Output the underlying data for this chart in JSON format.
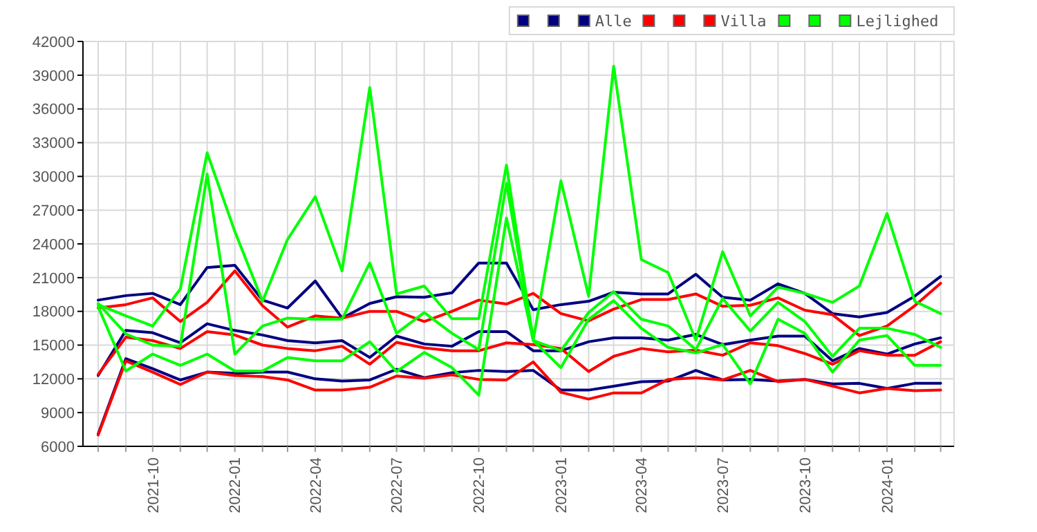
{
  "chart_data": {
    "type": "line",
    "x": [
      "2021-08",
      "2021-09",
      "2021-10",
      "2021-11",
      "2021-12",
      "2022-01",
      "2022-02",
      "2022-03",
      "2022-04",
      "2022-05",
      "2022-06",
      "2022-07",
      "2022-08",
      "2022-09",
      "2022-10",
      "2022-11",
      "2022-12",
      "2023-01",
      "2023-02",
      "2023-03",
      "2023-04",
      "2023-05",
      "2023-06",
      "2023-07",
      "2023-08",
      "2023-09",
      "2023-10",
      "2023-11",
      "2023-12",
      "2024-01",
      "2024-02",
      "2024-03"
    ],
    "series": [
      {
        "color": "#000080",
        "values": [
          19000,
          19400,
          19600,
          18600,
          21900,
          22100,
          19000,
          18300,
          20700,
          17400,
          18700,
          19300,
          19250,
          19650,
          22300,
          22300,
          18150,
          18600,
          18900,
          19700,
          19550,
          19550,
          21300,
          19250,
          19000,
          20450,
          19600,
          17800,
          17500,
          17900,
          19350,
          21100
        ]
      },
      {
        "color": "#000080",
        "values": [
          12300,
          16300,
          16100,
          15200,
          16900,
          16300,
          15900,
          15400,
          15200,
          15400,
          13900,
          15800,
          15100,
          14900,
          16200,
          16200,
          14500,
          14500,
          15300,
          15650,
          15650,
          15450,
          15950,
          15050,
          15450,
          15800,
          15800,
          13600,
          14700,
          14200,
          15100,
          15650
        ]
      },
      {
        "name": "Alle",
        "color": "#000080",
        "values": [
          7100,
          13800,
          12900,
          11900,
          12600,
          12500,
          12600,
          12600,
          12000,
          11800,
          11900,
          12850,
          12100,
          12550,
          12750,
          12650,
          12750,
          11000,
          11000,
          11350,
          11750,
          11800,
          12750,
          11900,
          11950,
          11800,
          11950,
          11550,
          11600,
          11150,
          11600,
          11600
        ]
      },
      {
        "color": "#ff0000",
        "values": [
          18300,
          18600,
          19200,
          17100,
          18800,
          21600,
          18500,
          16600,
          17600,
          17400,
          18000,
          18000,
          17100,
          18000,
          19000,
          18650,
          19600,
          17800,
          17150,
          18200,
          19050,
          19050,
          19550,
          18450,
          18550,
          19200,
          18100,
          17700,
          15850,
          16700,
          18500,
          20500
        ]
      },
      {
        "color": "#ff0000",
        "values": [
          12400,
          15700,
          15400,
          14700,
          16200,
          15900,
          15000,
          14700,
          14500,
          14900,
          13300,
          15250,
          14750,
          14500,
          14500,
          15200,
          15050,
          14700,
          12650,
          14000,
          14700,
          14400,
          14550,
          14100,
          15200,
          14950,
          14250,
          13300,
          14500,
          14100,
          14100,
          15300
        ]
      },
      {
        "name": "Villa",
        "color": "#ff0000",
        "values": [
          7000,
          13600,
          12600,
          11500,
          12600,
          12300,
          12200,
          11900,
          11000,
          11000,
          11250,
          12250,
          12050,
          12350,
          11950,
          11900,
          13500,
          10800,
          10200,
          10750,
          10750,
          11950,
          12100,
          11900,
          12750,
          11750,
          11950,
          11350,
          10750,
          11150,
          10950,
          11000
        ]
      },
      {
        "color": "#00ff00",
        "values": [
          18600,
          17600,
          16700,
          20000,
          32100,
          25100,
          18900,
          24400,
          28200,
          21600,
          37900,
          19550,
          20250,
          17350,
          17350,
          31000,
          15450,
          29600,
          19350,
          39800,
          22600,
          21450,
          15450,
          23300,
          17600,
          20150,
          19600,
          18800,
          20250,
          26700,
          18900,
          17800
        ]
      },
      {
        "color": "#00ff00",
        "values": [
          18700,
          16000,
          15000,
          14900,
          30200,
          14200,
          16700,
          17400,
          17300,
          17300,
          22300,
          16050,
          17900,
          16050,
          14600,
          29400,
          15400,
          14500,
          17900,
          19750,
          17300,
          16700,
          14600,
          19150,
          16250,
          18800,
          17100,
          14000,
          16500,
          16500,
          15950,
          14800
        ]
      },
      {
        "name": "Lejlighed",
        "color": "#00ff00",
        "values": [
          18400,
          12700,
          14200,
          13200,
          14200,
          12700,
          12700,
          13900,
          13600,
          13600,
          15300,
          12650,
          14350,
          13000,
          10550,
          26300,
          15400,
          13000,
          17300,
          18950,
          16500,
          14800,
          14300,
          15050,
          11550,
          17300,
          16050,
          12600,
          15450,
          15850,
          13200,
          13200
        ]
      }
    ],
    "xlim": [
      "2021-07-15",
      "2024-03-16"
    ],
    "xticks": [
      {
        "value": "2021-08",
        "label": null
      },
      {
        "value": "2021-09",
        "label": null
      },
      {
        "value": "2021-10",
        "label": "2021-10"
      },
      {
        "value": "2021-11",
        "label": null
      },
      {
        "value": "2021-12",
        "label": null
      },
      {
        "value": "2022-01",
        "label": "2022-01"
      },
      {
        "value": "2022-02",
        "label": null
      },
      {
        "value": "2022-03",
        "label": null
      },
      {
        "value": "2022-04",
        "label": "2022-04"
      },
      {
        "value": "2022-05",
        "label": null
      },
      {
        "value": "2022-06",
        "label": null
      },
      {
        "value": "2022-07",
        "label": "2022-07"
      },
      {
        "value": "2022-08",
        "label": null
      },
      {
        "value": "2022-09",
        "label": null
      },
      {
        "value": "2022-10",
        "label": "2022-10"
      },
      {
        "value": "2022-11",
        "label": null
      },
      {
        "value": "2022-12",
        "label": null
      },
      {
        "value": "2023-01",
        "label": "2023-01"
      },
      {
        "value": "2023-02",
        "label": null
      },
      {
        "value": "2023-03",
        "label": null
      },
      {
        "value": "2023-04",
        "label": "2023-04"
      },
      {
        "value": "2023-05",
        "label": null
      },
      {
        "value": "2023-06",
        "label": null
      },
      {
        "value": "2023-07",
        "label": "2023-07"
      },
      {
        "value": "2023-08",
        "label": null
      },
      {
        "value": "2023-09",
        "label": null
      },
      {
        "value": "2023-10",
        "label": "2023-10"
      },
      {
        "value": "2023-11",
        "label": null
      },
      {
        "value": "2023-12",
        "label": null
      },
      {
        "value": "2024-01",
        "label": "2024-01"
      },
      {
        "value": "2024-02",
        "label": null
      },
      {
        "value": "2024-03",
        "label": null
      }
    ],
    "ylim": [
      6000,
      42000
    ],
    "yticks": [
      6000,
      9000,
      12000,
      15000,
      18000,
      21000,
      24000,
      27000,
      30000,
      33000,
      36000,
      39000,
      42000
    ],
    "grid": true,
    "legend": "top right",
    "marker": "none",
    "line_style": "solid"
  }
}
